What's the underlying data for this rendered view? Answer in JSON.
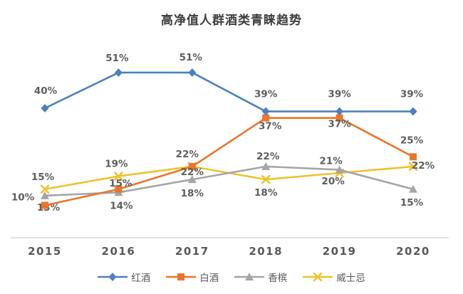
{
  "title": "高净值人群酒类青睐趋势",
  "chart_data": {
    "type": "line",
    "title": "高净值人群酒类青睐趋势",
    "categories": [
      "2015",
      "2016",
      "2017",
      "2018",
      "2019",
      "2020"
    ],
    "unit": "%",
    "ylim": [
      0,
      60
    ],
    "grid": false,
    "legend_position": "bottom",
    "axis_color": "#d9d9d9",
    "label_color": "#5e5e5e",
    "series": [
      {
        "name": "红酒",
        "marker": "diamond",
        "color": "#4E81BD",
        "values": [
          40,
          51,
          51,
          39,
          39,
          39
        ],
        "labels": [
          "40%",
          "51%",
          "51%",
          "39%",
          "39%",
          "39%"
        ],
        "label_offsets": [
          [
            1,
            -20
          ],
          [
            -2,
            -16
          ],
          [
            -2,
            -17
          ],
          [
            0,
            -20
          ],
          [
            0,
            -20
          ],
          [
            -2,
            -20
          ]
        ]
      },
      {
        "name": "白酒",
        "marker": "square",
        "color": "#E8762C",
        "values": [
          10,
          15,
          22,
          37,
          37,
          25
        ],
        "labels": [
          "10%",
          "15%",
          "22%",
          "37%",
          "37%",
          "25%"
        ],
        "label_offsets": [
          [
            -31,
            -7
          ],
          [
            3,
            -4
          ],
          [
            0,
            12
          ],
          [
            6,
            16
          ],
          [
            0,
            13
          ],
          [
            -2,
            -19
          ]
        ]
      },
      {
        "name": "香槟",
        "marker": "triangle",
        "color": "#A5A5A5",
        "values": [
          13,
          14,
          18,
          22,
          21,
          15
        ],
        "labels": [
          "13%",
          "14%",
          "18%",
          "22%",
          "21%",
          "15%"
        ],
        "label_offsets": [
          [
            5,
            21
          ],
          [
            4,
            23
          ],
          [
            0,
            24
          ],
          [
            3,
            -10
          ],
          [
            -12,
            -8
          ],
          [
            -2,
            23
          ]
        ]
      },
      {
        "name": "威士忌",
        "marker": "x",
        "color": "#EFC22E",
        "values": [
          15,
          19,
          22,
          18,
          20,
          22
        ],
        "labels": [
          "15%",
          "19%",
          "22%",
          "18%",
          "20%",
          "22%"
        ],
        "label_offsets": [
          [
            -3,
            -13
          ],
          [
            -3,
            -13
          ],
          [
            -7,
            -13
          ],
          [
            0,
            23
          ],
          [
            -9,
            16
          ],
          [
            14,
            3
          ]
        ]
      }
    ]
  }
}
